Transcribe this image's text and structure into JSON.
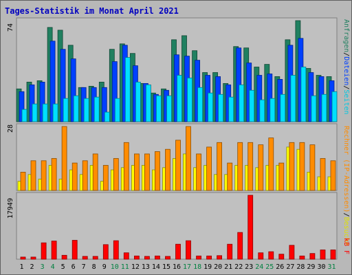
{
  "chart_data": {
    "type": "bar",
    "title": "Tages-Statistik im Monat April 2021",
    "days": [
      "1",
      "2",
      "3",
      "4",
      "5",
      "6",
      "7",
      "8",
      "9",
      "10",
      "11",
      "12",
      "13",
      "14",
      "15",
      "16",
      "17",
      "18",
      "19",
      "20",
      "21",
      "22",
      "23",
      "24",
      "25",
      "26",
      "27",
      "28",
      "29",
      "30",
      "31"
    ],
    "weekend_days": [
      "3",
      "4",
      "10",
      "11",
      "17",
      "18",
      "24",
      "25",
      "31"
    ],
    "colors": {
      "background": "#b8b8b8",
      "plot": "#c0c0c0",
      "title": "#0000c0",
      "weekday_label": "#000000",
      "weekend_label": "#008040",
      "anfragen": "#208060",
      "dateien": "#0040ff",
      "seiten": "#00e0ff",
      "besuche": "#ffff00",
      "rechner": "#ff8c00",
      "kb": "#ff0000",
      "kbf": "#ff0000"
    },
    "panel_top": {
      "ymax_label": "74",
      "ymax": 74,
      "legend": [
        "Anfragen",
        "Dateien",
        "Seiten"
      ],
      "legend_separator": "/",
      "series": [
        {
          "key": "anfragen",
          "values": [
            24,
            29,
            30,
            69,
            67,
            56,
            25,
            26,
            29,
            53,
            57,
            50,
            28,
            21,
            24,
            60,
            63,
            52,
            36,
            36,
            28,
            55,
            54,
            40,
            42,
            33,
            60,
            74,
            39,
            34,
            33
          ]
        },
        {
          "key": "dateien",
          "values": [
            22,
            27,
            29,
            59,
            53,
            46,
            25,
            25,
            25,
            44,
            56,
            41,
            28,
            20,
            23,
            49,
            48,
            45,
            34,
            33,
            27,
            54,
            43,
            34,
            35,
            31,
            56,
            61,
            36,
            33,
            30
          ]
        },
        {
          "key": "seiten",
          "values": [
            9,
            13,
            13,
            13,
            17,
            19,
            17,
            18,
            7,
            17,
            47,
            29,
            27,
            19,
            19,
            34,
            32,
            25,
            21,
            20,
            18,
            27,
            23,
            16,
            17,
            20,
            34,
            40,
            19,
            20,
            22
          ]
        }
      ]
    },
    "panel_mid": {
      "ymax_label": "28",
      "ymax": 28,
      "legend": [
        "Rechner (IP-Adressen)",
        "Besuche"
      ],
      "legend_separator": "/",
      "series": [
        {
          "key": "besuche",
          "values": [
            4,
            7,
            5,
            11,
            5,
            9,
            7,
            11,
            4,
            9,
            10,
            11,
            11,
            9,
            10,
            14,
            16,
            10,
            11,
            7,
            7,
            11,
            11,
            10,
            11,
            11,
            19,
            18,
            8,
            6,
            6
          ]
        },
        {
          "key": "rechner",
          "values": [
            8,
            13,
            13,
            14,
            28,
            12,
            13,
            16,
            11,
            14,
            21,
            16,
            16,
            17,
            18,
            22,
            28,
            16,
            19,
            21,
            12,
            21,
            21,
            20,
            23,
            12,
            21,
            21,
            20,
            14,
            13
          ]
        }
      ]
    },
    "panel_bot": {
      "ymax_label": "17949",
      "ymax": 17949,
      "legend": [
        "kB F"
      ],
      "series": [
        {
          "key": "kbf",
          "values": [
            0,
            0,
            0,
            0,
            0,
            0,
            0,
            0,
            0,
            0,
            0,
            0,
            0,
            0,
            0,
            0,
            0,
            0,
            0,
            0,
            0,
            0,
            0,
            0,
            0,
            0,
            0,
            0,
            0,
            0,
            0
          ]
        },
        {
          "key": "kb",
          "values": [
            600,
            600,
            4600,
            5100,
            1100,
            5300,
            800,
            800,
            4100,
            5200,
            1800,
            900,
            800,
            900,
            800,
            4200,
            5200,
            900,
            900,
            1000,
            4200,
            7500,
            17949,
            1800,
            2100,
            1400,
            3900,
            900,
            1600,
            2600,
            2600
          ]
        }
      ]
    }
  }
}
